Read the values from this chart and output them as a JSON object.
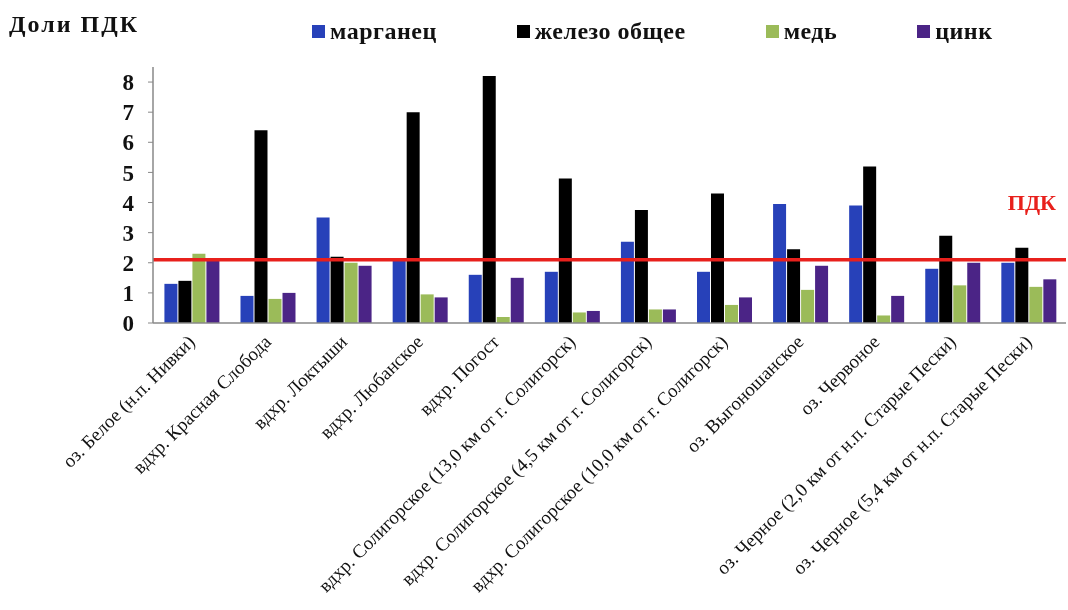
{
  "chart_data": {
    "type": "bar",
    "ylabel": "Доли ПДК",
    "categories": [
      "оз. Белое (н.п. Нивки)",
      "вдхр. Красная Слобода",
      "вдхр. Локтыши",
      "вдхр. Любанское",
      "вдхр. Погост",
      "вдхр. Солигорское (13,0 км от г. Солигорск)",
      "вдхр. Солигорское (4,5 км от г. Солигорск)",
      "вдхр. Солигорское (10,0 км от г. Солигорск)",
      "оз. Выгоношанское",
      "оз. Червоное",
      "оз. Черное (2,0 км от н.п. Старые Пески)",
      "оз. Черное (5,4 км от н.п. Старые Пески)"
    ],
    "series": [
      {
        "name": "марганец",
        "color": "#2741b9",
        "values": [
          1.3,
          0.9,
          3.5,
          2.1,
          1.6,
          1.7,
          2.7,
          1.7,
          3.95,
          3.9,
          1.8,
          2.0
        ]
      },
      {
        "name": "железо общее",
        "color": "#000000",
        "values": [
          1.4,
          6.4,
          2.2,
          7.0,
          8.2,
          4.8,
          3.75,
          4.3,
          2.45,
          5.2,
          2.9,
          2.5
        ]
      },
      {
        "name": "медь",
        "color": "#9bbb59",
        "values": [
          2.3,
          0.8,
          2.0,
          0.95,
          0.2,
          0.35,
          0.45,
          0.6,
          1.1,
          0.25,
          1.25,
          1.2
        ]
      },
      {
        "name": "цинк",
        "color": "#4b2486",
        "values": [
          2.1,
          1.0,
          1.9,
          0.85,
          1.5,
          0.4,
          0.45,
          0.85,
          1.9,
          0.9,
          2.0,
          1.45
        ]
      }
    ],
    "ylim": [
      0,
      8.5
    ],
    "yticks": [
      0,
      1,
      2,
      3,
      4,
      5,
      6,
      7,
      8
    ],
    "legend": "top",
    "ref_lines": [
      {
        "axis": "y",
        "value": 2.1,
        "label": "ПДК",
        "color": "#e8201c"
      }
    ]
  }
}
